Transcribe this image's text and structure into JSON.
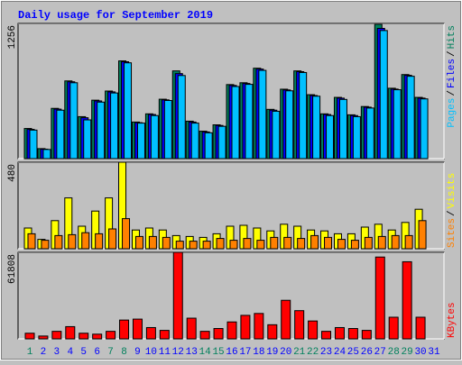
{
  "chart_data": [
    {
      "type": "bar",
      "title": "Daily usage for September 2019",
      "legend_separator": "/",
      "ylim": [
        0,
        1256
      ],
      "yticks": [
        1256
      ],
      "series": [
        {
          "name": "Hits",
          "color": "#00805c",
          "values": [
            280,
            93,
            467,
            722,
            390,
            543,
            628,
            908,
            340,
            416,
            552,
            815,
            348,
            255,
            314,
            688,
            705,
            840,
            458,
            645,
            815,
            594,
            416,
            569,
            407,
            484,
            1248,
            654,
            781,
            569,
            null
          ]
        },
        {
          "name": "Files",
          "color": "#0000ff",
          "values": [
            272,
            88,
            460,
            714,
            380,
            536,
            620,
            900,
            334,
            410,
            546,
            790,
            340,
            248,
            308,
            680,
            698,
            832,
            450,
            638,
            808,
            586,
            410,
            562,
            400,
            478,
            1210,
            646,
            774,
            562,
            null
          ]
        },
        {
          "name": "Pages",
          "color": "#00c0ff",
          "values": [
            265,
            85,
            450,
            705,
            360,
            525,
            610,
            890,
            330,
            400,
            540,
            772,
            330,
            240,
            300,
            670,
            690,
            820,
            440,
            630,
            800,
            580,
            400,
            550,
            390,
            470,
            1190,
            640,
            765,
            555,
            null
          ]
        }
      ]
    },
    {
      "type": "bar",
      "legend_separator": "/",
      "ylim": [
        0,
        480
      ],
      "yticks": [
        480
      ],
      "series": [
        {
          "name": "Visits",
          "color": "#ffff00",
          "values": [
            115,
            52,
            156,
            282,
            125,
            209,
            282,
            480,
            104,
            115,
            104,
            73,
            68,
            63,
            83,
            125,
            130,
            115,
            99,
            136,
            125,
            104,
            99,
            83,
            83,
            120,
            136,
            104,
            146,
            219,
            null
          ]
        },
        {
          "name": "Sites",
          "color": "#ff8000",
          "values": [
            83,
            47,
            73,
            78,
            89,
            83,
            110,
            167,
            68,
            68,
            63,
            42,
            42,
            42,
            57,
            47,
            57,
            47,
            63,
            63,
            57,
            73,
            63,
            52,
            47,
            63,
            68,
            73,
            73,
            156,
            null
          ]
        }
      ]
    },
    {
      "type": "bar",
      "ylim": [
        0,
        61808
      ],
      "yticks": [
        61808
      ],
      "categories": [
        "1",
        "2",
        "3",
        "4",
        "5",
        "6",
        "7",
        "8",
        "9",
        "10",
        "11",
        "12",
        "13",
        "14",
        "15",
        "16",
        "17",
        "18",
        "19",
        "20",
        "21",
        "22",
        "23",
        "24",
        "25",
        "26",
        "27",
        "28",
        "29",
        "30",
        "31"
      ],
      "category_colors": [
        "#00805c",
        "#0000ff",
        "#0000ff",
        "#0000ff",
        "#0000ff",
        "#0000ff",
        "#00805c",
        "#00805c",
        "#0000ff",
        "#0000ff",
        "#0000ff",
        "#0000ff",
        "#0000ff",
        "#00805c",
        "#00805c",
        "#0000ff",
        "#0000ff",
        "#0000ff",
        "#0000ff",
        "#0000ff",
        "#00805c",
        "#00805c",
        "#0000ff",
        "#0000ff",
        "#0000ff",
        "#0000ff",
        "#0000ff",
        "#00805c",
        "#00805c",
        "#0000ff",
        "#0000ff"
      ],
      "series": [
        {
          "name": "KBytes",
          "color": "#ff0000",
          "values": [
            4031,
            2015,
            5375,
            8734,
            4031,
            3359,
            5375,
            13436,
            14108,
            8062,
            6046,
            61808,
            14780,
            5375,
            7390,
            12093,
            16796,
            18139,
            10077,
            27545,
            20155,
            12765,
            5375,
            8062,
            7390,
            6046,
            58449,
            15452,
            55090,
            15452,
            null
          ]
        }
      ]
    }
  ]
}
